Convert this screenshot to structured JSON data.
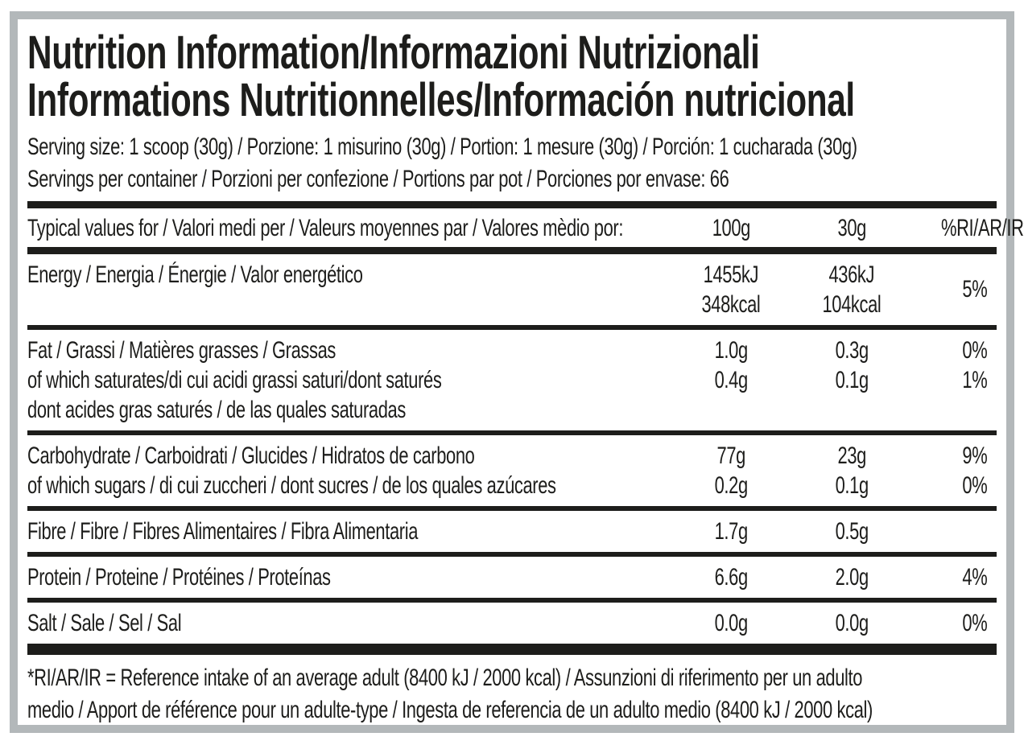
{
  "colors": {
    "text": "#1d1d1b",
    "frame_gray": "#b3b8ba",
    "background": "#ffffff"
  },
  "title": {
    "line1": "Nutrition Information/Informazioni Nutrizionali",
    "line2": "Informations Nutritionnelles/Información nutricional"
  },
  "serving": {
    "size": "Serving size: 1 scoop (30g) / Porzione: 1 misurino (30g) / Portion: 1 mesure (30g) / Porción: 1 cucharada (30g)",
    "per_container": "Servings per container / Porzioni per confezione / Portions par pot / Porciones por envase: 66"
  },
  "table": {
    "header": {
      "label": "Typical values for / Valori medi per / Valeurs moyennes par / Valores mèdio por:",
      "col_100g": "100g",
      "col_30g": "30g",
      "col_ri": "%RI/AR/IR*"
    },
    "rows": [
      {
        "id": "energy",
        "ri_span": "5%",
        "lines": [
          {
            "label": "Energy / Energia / Énergie / Valor energético",
            "v100": "1455kJ",
            "v30": "436kJ",
            "ri": ""
          },
          {
            "label": "",
            "v100": "348kcal",
            "v30": "104kcal",
            "ri": ""
          }
        ]
      },
      {
        "id": "fat",
        "lines": [
          {
            "label": "Fat / Grassi / Matières grasses / Grassas",
            "v100": "1.0g",
            "v30": "0.3g",
            "ri": "0%"
          },
          {
            "label": "of which saturates/di cui acidi grassi saturi/dont saturés",
            "v100": "0.4g",
            "v30": "0.1g",
            "ri": "1%"
          },
          {
            "label": "dont acides gras saturés / de las quales saturadas",
            "v100": "",
            "v30": "",
            "ri": ""
          }
        ]
      },
      {
        "id": "carbohydrate",
        "lines": [
          {
            "label": "Carbohydrate / Carboidrati / Glucides / Hidratos de carbono",
            "v100": "77g",
            "v30": "23g",
            "ri": "9%"
          },
          {
            "label": "of which sugars / di cui zuccheri / dont sucres / de los quales azúcares",
            "v100": "0.2g",
            "v30": "0.1g",
            "ri": "0%"
          }
        ]
      },
      {
        "id": "fibre",
        "lines": [
          {
            "label": "Fibre / Fibre / Fibres Alimentaires / Fibra Alimentaria",
            "v100": "1.7g",
            "v30": "0.5g",
            "ri": ""
          }
        ]
      },
      {
        "id": "protein",
        "lines": [
          {
            "label": "Protein / Proteine / Protéines / Proteínas",
            "v100": "6.6g",
            "v30": "2.0g",
            "ri": "4%"
          }
        ]
      },
      {
        "id": "salt",
        "lines": [
          {
            "label": "Salt / Sale / Sel / Sal",
            "v100": "0.0g",
            "v30": "0.0g",
            "ri": "0%"
          }
        ]
      }
    ]
  },
  "footnote": {
    "line1": "*RI/AR/IR = Reference intake of an average adult (8400 kJ / 2000 kcal)  / Assunzioni di riferimento per un adulto",
    "line2": "medio / Apport de référence pour un adulte-type / Ingesta de referencia de un adulto medio (8400 kJ / 2000 kcal)"
  }
}
